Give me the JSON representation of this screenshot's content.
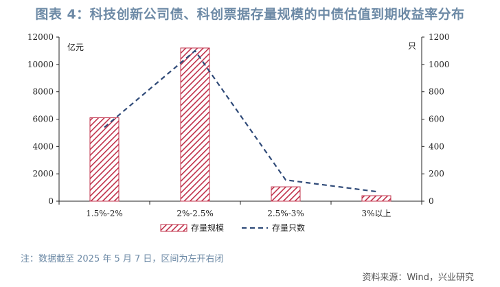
{
  "title": "图表 4：科技创新公司债、科创票据存量规模的中债估值到期收益率分布",
  "note": "注：数据截至 2025 年 5 月 7 日，区间为左开右闭",
  "source": "资料来源：Wind，兴业研究",
  "colors": {
    "title": "#6d8aa6",
    "bar_stripe": "#c0304a",
    "line": "#2f4a78",
    "axis": "#222222"
  },
  "chart_data": {
    "type": "bar",
    "categories": [
      "1.5%-2%",
      "2%-2.5%",
      "2.5%-3%",
      "3%以上"
    ],
    "series": [
      {
        "name": "存量规模",
        "type": "bar",
        "axis": "left",
        "pattern": "diagonal-hatch",
        "values": [
          6100,
          11200,
          1050,
          400
        ]
      },
      {
        "name": "存量只数",
        "type": "line",
        "axis": "right",
        "style": "dashed",
        "values": [
          540,
          1100,
          155,
          70
        ]
      }
    ],
    "y_left": {
      "unit": "亿元",
      "ylim": [
        0,
        12000
      ],
      "ticks": [
        "0",
        "2000",
        "4000",
        "6000",
        "8000",
        "10000",
        "12000"
      ]
    },
    "y_right": {
      "unit": "只",
      "ylim": [
        0,
        1200
      ],
      "ticks": [
        "0",
        "200",
        "400",
        "600",
        "800",
        "1000",
        "1200"
      ]
    },
    "grid": false,
    "legend_position": "bottom"
  }
}
